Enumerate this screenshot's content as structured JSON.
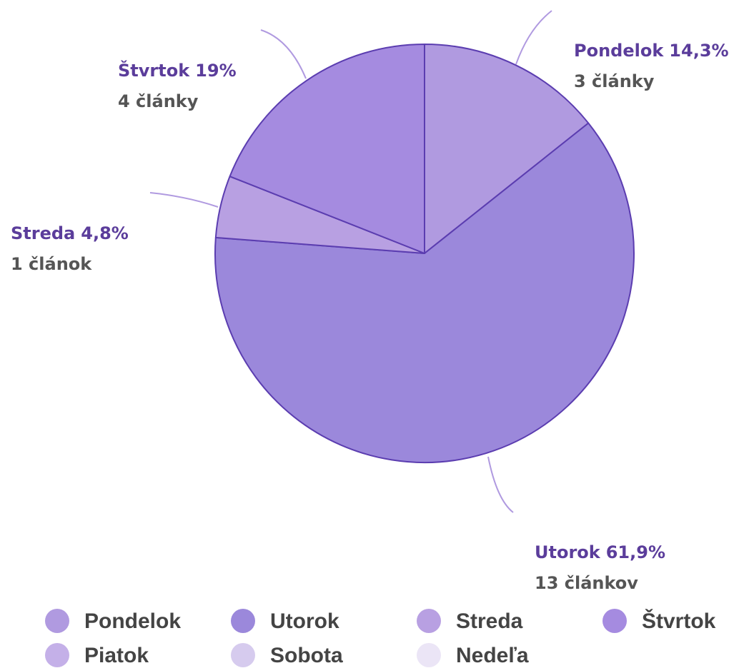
{
  "chart_data": {
    "type": "pie",
    "categories": [
      "Pondelok",
      "Utorok",
      "Streda",
      "Štvrtok",
      "Piatok",
      "Sobota",
      "Nedeľa"
    ],
    "values": [
      14.3,
      61.9,
      4.8,
      19,
      0,
      0,
      0
    ],
    "value_labels": [
      "14,3%",
      "61,9%",
      "4,8%",
      "19%",
      null,
      null,
      null
    ],
    "counts": [
      3,
      13,
      1,
      4,
      null,
      null,
      null
    ],
    "count_labels": [
      "3 články",
      "13 článkov",
      "1 článok",
      "4 články",
      null,
      null,
      null
    ],
    "colors": [
      "#b09ae0",
      "#9b88db",
      "#b8a0e2",
      "#a58be0",
      "#c4b0e8",
      "#d6cbee",
      "#ebe5f6"
    ],
    "legend": "bottom"
  }
}
